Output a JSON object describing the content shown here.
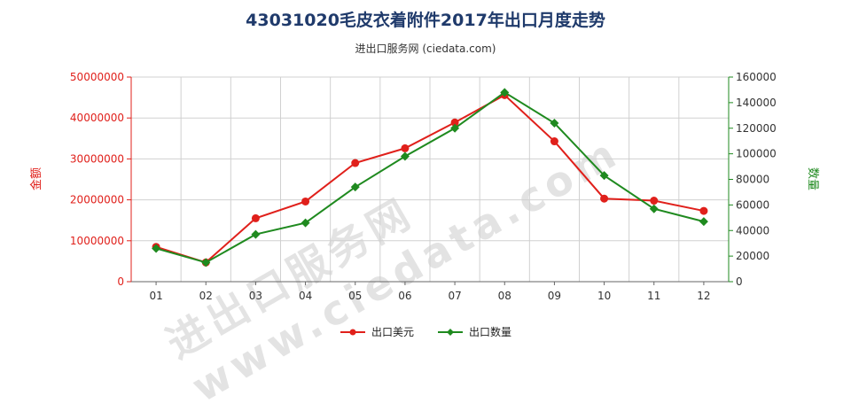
{
  "title": "43031020毛皮衣着附件2017年出口月度走势",
  "subtitle": "进出口服务网 (ciedata.com)",
  "watermark": "进出口服务网 www.ciedata.com",
  "chart_data": {
    "type": "line",
    "categories": [
      "01",
      "02",
      "03",
      "04",
      "05",
      "06",
      "07",
      "08",
      "09",
      "10",
      "11",
      "12"
    ],
    "y_left": {
      "label": "金额",
      "ylim": [
        0,
        50000000
      ],
      "ticks": [
        "0",
        "10000000",
        "20000000",
        "30000000",
        "40000000",
        "50000000"
      ],
      "color": "#e0201b"
    },
    "y_right": {
      "label": "数量",
      "ylim": [
        0,
        160000
      ],
      "ticks": [
        "0",
        "20000",
        "40000",
        "60000",
        "80000",
        "100000",
        "120000",
        "140000",
        "160000"
      ],
      "color": "#1f8a1f"
    },
    "series": [
      {
        "name": "出口美元",
        "axis": "left",
        "color": "#e0201b",
        "values": [
          8500000,
          4700000,
          15500000,
          19600000,
          29000000,
          32600000,
          38900000,
          45600000,
          34300000,
          20300000,
          19800000,
          17300000
        ]
      },
      {
        "name": "出口数量",
        "axis": "right",
        "color": "#1f8a1f",
        "values": [
          26000,
          15000,
          37000,
          46000,
          74000,
          98000,
          120000,
          148000,
          124000,
          83000,
          57000,
          47000
        ]
      }
    ],
    "grid": true,
    "legend_position": "bottom-center"
  }
}
